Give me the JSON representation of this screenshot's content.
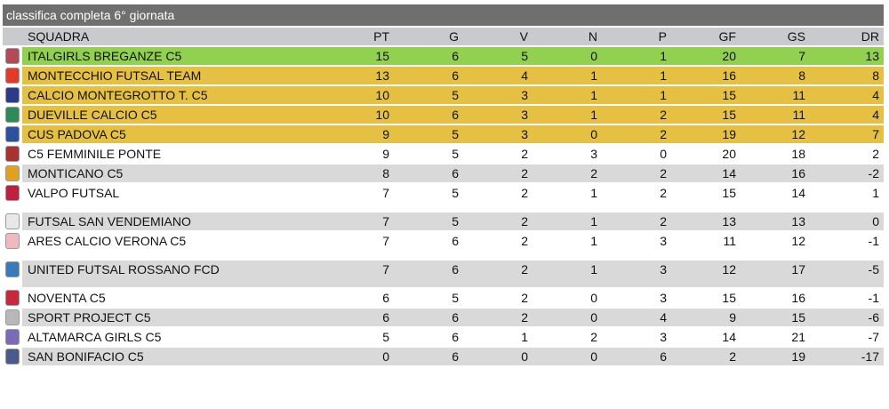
{
  "title": "classifica completa 6° giornata",
  "headers": {
    "team": "SQUADRA",
    "pt": "PT",
    "g": "G",
    "v": "V",
    "n": "N",
    "p": "P",
    "gf": "GF",
    "gs": "GS",
    "dr": "DR"
  },
  "rows": [
    {
      "team": "ITALGIRLS BREGANZE C5",
      "pt": "15",
      "g": "6",
      "v": "5",
      "n": "0",
      "p": "1",
      "gf": "20",
      "gs": "7",
      "dr": "13",
      "highlight": "green",
      "logo_color": "#b34a5a"
    },
    {
      "team": "MONTECCHIO FUTSAL TEAM",
      "pt": "13",
      "g": "6",
      "v": "4",
      "n": "1",
      "p": "1",
      "gf": "16",
      "gs": "8",
      "dr": "8",
      "highlight": "yellow",
      "logo_color": "#e23b2b"
    },
    {
      "team": "CALCIO MONTEGROTTO T. C5",
      "pt": "10",
      "g": "5",
      "v": "3",
      "n": "1",
      "p": "1",
      "gf": "15",
      "gs": "11",
      "dr": "4",
      "highlight": "yellow",
      "logo_color": "#2b3a8a"
    },
    {
      "team": "DUEVILLE CALCIO C5",
      "pt": "10",
      "g": "6",
      "v": "3",
      "n": "1",
      "p": "2",
      "gf": "15",
      "gs": "11",
      "dr": "4",
      "highlight": "yellow",
      "logo_color": "#2e8b57"
    },
    {
      "team": "CUS PADOVA C5",
      "pt": "9",
      "g": "5",
      "v": "3",
      "n": "0",
      "p": "2",
      "gf": "19",
      "gs": "12",
      "dr": "7",
      "highlight": "yellow",
      "logo_color": "#2a52a0"
    },
    {
      "team": "C5 FEMMINILE PONTE",
      "pt": "9",
      "g": "5",
      "v": "2",
      "n": "3",
      "p": "0",
      "gf": "20",
      "gs": "18",
      "dr": "2",
      "highlight": "white",
      "logo_color": "#a83232"
    },
    {
      "team": "MONTICANO C5",
      "pt": "8",
      "g": "6",
      "v": "2",
      "n": "2",
      "p": "2",
      "gf": "14",
      "gs": "16",
      "dr": "-2",
      "highlight": "gray",
      "logo_color": "#e0a020"
    },
    {
      "team": "VALPO FUTSAL",
      "pt": "7",
      "g": "5",
      "v": "2",
      "n": "1",
      "p": "2",
      "gf": "15",
      "gs": "14",
      "dr": "1",
      "highlight": "white",
      "logo_color": "#c02040"
    },
    {
      "team": "FUTSAL SAN VENDEMIANO",
      "pt": "7",
      "g": "5",
      "v": "2",
      "n": "1",
      "p": "2",
      "gf": "13",
      "gs": "13",
      "dr": "0",
      "highlight": "gray",
      "logo_color": "#e8e8e8"
    },
    {
      "team": "ARES CALCIO VERONA C5",
      "pt": "7",
      "g": "6",
      "v": "2",
      "n": "1",
      "p": "3",
      "gf": "11",
      "gs": "12",
      "dr": "-1",
      "highlight": "white",
      "logo_color": "#f2b8c0"
    },
    {
      "team": "UNITED FUTSAL ROSSANO FCD",
      "pt": "7",
      "g": "6",
      "v": "2",
      "n": "1",
      "p": "3",
      "gf": "12",
      "gs": "17",
      "dr": "-5",
      "highlight": "gray",
      "logo_color": "#3a7ab8"
    },
    {
      "team": "NOVENTA C5",
      "pt": "6",
      "g": "5",
      "v": "2",
      "n": "0",
      "p": "3",
      "gf": "15",
      "gs": "16",
      "dr": "-1",
      "highlight": "white",
      "logo_color": "#c8283c"
    },
    {
      "team": "SPORT PROJECT C5",
      "pt": "6",
      "g": "6",
      "v": "2",
      "n": "0",
      "p": "4",
      "gf": "9",
      "gs": "15",
      "dr": "-6",
      "highlight": "gray",
      "logo_color": "#b8b8b8"
    },
    {
      "team": "ALTAMARCA GIRLS C5",
      "pt": "5",
      "g": "6",
      "v": "1",
      "n": "2",
      "p": "3",
      "gf": "14",
      "gs": "21",
      "dr": "-7",
      "highlight": "white",
      "logo_color": "#7a6ab8"
    },
    {
      "team": "SAN BONIFACIO C5",
      "pt": "0",
      "g": "6",
      "v": "0",
      "n": "0",
      "p": "6",
      "gf": "2",
      "gs": "19",
      "dr": "-17",
      "highlight": "gray",
      "logo_color": "#4a5a8a"
    }
  ]
}
